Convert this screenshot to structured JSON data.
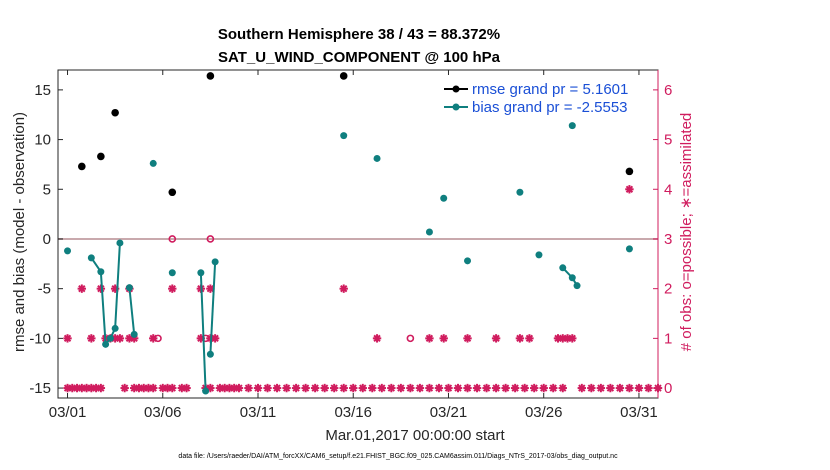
{
  "chart_data": {
    "type": "line",
    "title": "Southern Hemisphere 38 / 43 = 88.372%",
    "subtitle": "SAT_U_WIND_COMPONENT @ 100 hPa",
    "xlabel": "Mar.01,2017 00:00:00 start",
    "ylabel": "rmse and bias (model - observation)",
    "ylabel_right": "# of obs: o=possible; ∗=assimilated",
    "footnote": "data file: /Users/raeder/DAI/ATM_forcXX/CAM6_setup/f.e21.FHIST_BGC.f09_025.CAM6assim.011/Diags_NTrS_2017-03/obs_diag_output.nc",
    "xlim": [
      0.5,
      32.0
    ],
    "ylim": [
      -16,
      17
    ],
    "ylim_right": [
      -0.2,
      6.4
    ],
    "x_ticks": [
      1,
      6,
      11,
      16,
      21,
      26,
      31
    ],
    "x_tick_labels": [
      "03/01",
      "03/06",
      "03/11",
      "03/16",
      "03/21",
      "03/26",
      "03/31"
    ],
    "y_ticks": [
      -15,
      -10,
      -5,
      0,
      5,
      10,
      15
    ],
    "y_tick_labels": [
      "-15",
      "-10",
      "-5",
      "0",
      "5",
      "10",
      "15"
    ],
    "y_right_ticks": [
      0,
      1,
      2,
      3,
      4,
      5,
      6
    ],
    "y_right_tick_labels": [
      "0",
      "1",
      "2",
      "3",
      "4",
      "5",
      "6"
    ],
    "zero_line": 0,
    "colors": {
      "rmse": "#000000",
      "bias": "#0f7f7f",
      "obs": "#d01c5e",
      "zero": "#c9a9ad",
      "legend_text": "#1a4fd6"
    },
    "legend_position": "top-right",
    "series": [
      {
        "name": "rmse grand pr = 5.1601",
        "key": "rmse",
        "points": [
          [
            1.75,
            7.3
          ],
          [
            2.75,
            8.3
          ],
          [
            3.5,
            12.7
          ],
          [
            6.5,
            4.7
          ],
          [
            8.5,
            16.4
          ],
          [
            15.5,
            16.4
          ],
          [
            30.5,
            6.8
          ]
        ]
      },
      {
        "name": "bias grand pr = -2.5553",
        "key": "bias",
        "points": [
          [
            1.0,
            -1.2
          ],
          [
            5.5,
            7.6
          ],
          [
            15.5,
            10.4
          ],
          [
            17.25,
            8.1
          ],
          [
            20.0,
            0.7
          ],
          [
            20.75,
            4.1
          ],
          [
            22.0,
            -2.2
          ],
          [
            24.75,
            4.7
          ],
          [
            25.75,
            -1.6
          ],
          [
            27.5,
            11.4
          ]
        ],
        "segments": [
          [
            [
              2.25,
              -1.9
            ],
            [
              2.75,
              -3.3
            ],
            [
              3.0,
              -10.6
            ],
            [
              3.25,
              -10.0
            ],
            [
              3.5,
              -9.0
            ],
            [
              3.75,
              -0.4
            ]
          ],
          [
            [
              4.25,
              -4.9
            ],
            [
              4.5,
              -9.6
            ]
          ],
          [
            [
              6.5,
              -3.4
            ]
          ],
          [
            [
              8.0,
              -3.4
            ],
            [
              8.25,
              -15.3
            ]
          ],
          [
            [
              8.5,
              -11.6
            ],
            [
              8.75,
              -2.3
            ]
          ],
          [
            [
              27.0,
              -2.9
            ],
            [
              27.5,
              -3.9
            ],
            [
              27.75,
              -4.7
            ]
          ],
          [
            [
              30.5,
              -1.0
            ]
          ]
        ]
      }
    ],
    "obs_possible": [
      [
        1.0,
        0
      ],
      [
        1.25,
        0
      ],
      [
        1.5,
        0
      ],
      [
        1.75,
        0
      ],
      [
        2.0,
        0
      ],
      [
        2.25,
        0
      ],
      [
        2.5,
        0
      ],
      [
        2.75,
        0
      ],
      [
        1.0,
        1
      ],
      [
        2.25,
        1
      ],
      [
        1.75,
        2
      ],
      [
        2.75,
        2
      ],
      [
        3.0,
        1
      ],
      [
        3.25,
        1
      ],
      [
        3.5,
        1
      ],
      [
        3.75,
        1
      ],
      [
        3.5,
        2
      ],
      [
        4.25,
        1
      ],
      [
        4.5,
        1
      ],
      [
        4.25,
        2
      ],
      [
        4.0,
        0
      ],
      [
        4.5,
        0
      ],
      [
        4.75,
        0
      ],
      [
        5.0,
        0
      ],
      [
        5.25,
        0
      ],
      [
        5.5,
        0
      ],
      [
        5.5,
        1
      ],
      [
        5.75,
        1
      ],
      [
        6.5,
        2
      ],
      [
        6.5,
        3
      ],
      [
        6.0,
        0
      ],
      [
        6.25,
        0
      ],
      [
        6.5,
        0
      ],
      [
        7.0,
        0
      ],
      [
        7.25,
        0
      ],
      [
        8.0,
        1
      ],
      [
        8.25,
        1
      ],
      [
        8.0,
        2
      ],
      [
        8.5,
        2
      ],
      [
        8.5,
        3
      ],
      [
        8.5,
        1
      ],
      [
        8.75,
        1
      ],
      [
        8.25,
        0
      ],
      [
        8.5,
        0
      ],
      [
        9.0,
        0
      ],
      [
        9.25,
        0
      ],
      [
        9.5,
        0
      ],
      [
        9.75,
        0
      ],
      [
        10.0,
        0
      ],
      [
        10.5,
        0
      ],
      [
        11.0,
        0
      ],
      [
        11.5,
        0
      ],
      [
        12.0,
        0
      ],
      [
        12.5,
        0
      ],
      [
        13.0,
        0
      ],
      [
        13.5,
        0
      ],
      [
        14.0,
        0
      ],
      [
        14.5,
        0
      ],
      [
        15.0,
        0
      ],
      [
        15.5,
        0
      ],
      [
        15.5,
        2
      ],
      [
        16.0,
        0
      ],
      [
        16.5,
        0
      ],
      [
        17.0,
        0
      ],
      [
        17.25,
        1
      ],
      [
        17.5,
        0
      ],
      [
        18.0,
        0
      ],
      [
        18.5,
        0
      ],
      [
        19.0,
        0
      ],
      [
        19.5,
        0
      ],
      [
        20.0,
        1
      ],
      [
        20.0,
        0
      ],
      [
        20.5,
        0
      ],
      [
        20.75,
        1
      ],
      [
        21.0,
        0
      ],
      [
        21.5,
        0
      ],
      [
        22.0,
        1
      ],
      [
        22.0,
        0
      ],
      [
        22.5,
        0
      ],
      [
        23.0,
        0
      ],
      [
        23.5,
        0
      ],
      [
        23.5,
        1
      ],
      [
        24.0,
        0
      ],
      [
        24.5,
        0
      ],
      [
        24.75,
        1
      ],
      [
        25.0,
        0
      ],
      [
        25.25,
        1
      ],
      [
        25.5,
        0
      ],
      [
        26.0,
        0
      ],
      [
        26.5,
        0
      ],
      [
        26.75,
        1
      ],
      [
        27.0,
        1
      ],
      [
        27.25,
        1
      ],
      [
        27.5,
        1
      ],
      [
        27.0,
        0
      ],
      [
        28.0,
        0
      ],
      [
        28.5,
        0
      ],
      [
        29.0,
        0
      ],
      [
        29.5,
        0
      ],
      [
        30.0,
        0
      ],
      [
        30.5,
        0
      ],
      [
        30.5,
        4
      ],
      [
        31.0,
        0
      ],
      [
        31.5,
        0
      ],
      [
        32.0,
        0
      ]
    ],
    "obs_possible_only": [
      [
        6.5,
        3
      ],
      [
        8.5,
        3
      ],
      [
        5.75,
        1
      ],
      [
        8.25,
        1
      ],
      [
        19.0,
        1
      ]
    ]
  }
}
